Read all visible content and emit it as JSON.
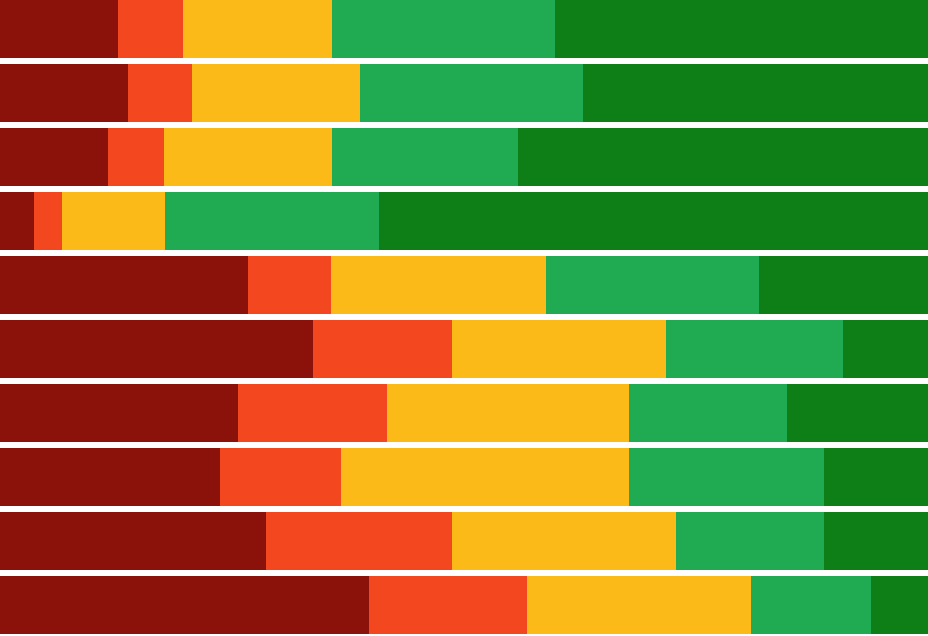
{
  "chart_data": {
    "type": "bar",
    "orientation": "horizontal",
    "stacked": true,
    "normalized": true,
    "grid": false,
    "legend": "none",
    "xlim": [
      0,
      100
    ],
    "title": "",
    "xlabel": "",
    "ylabel": "",
    "categories": [
      "",
      "",
      "",
      "",
      "",
      "",
      "",
      "",
      "",
      ""
    ],
    "series": [
      {
        "color": "#8b110b",
        "values": [
          12.7,
          13.8,
          11.6,
          3.7,
          26.7,
          33.7,
          25.7,
          23.7,
          28.7,
          39.8
        ]
      },
      {
        "color": "#f2471f",
        "values": [
          7.0,
          6.9,
          6.1,
          3.0,
          9.0,
          15.0,
          16.0,
          13.0,
          20.0,
          17.0
        ]
      },
      {
        "color": "#fcba19",
        "values": [
          16.1,
          18.1,
          18.1,
          11.1,
          23.1,
          23.1,
          26.1,
          31.1,
          24.1,
          24.1
        ]
      },
      {
        "color": "#20ab52",
        "values": [
          24.0,
          24.0,
          20.0,
          23.0,
          23.0,
          19.0,
          17.0,
          21.0,
          16.0,
          13.0
        ]
      },
      {
        "color": "#0e7e16",
        "values": [
          40.2,
          37.2,
          44.2,
          59.2,
          18.2,
          9.2,
          15.2,
          11.2,
          11.2,
          6.1
        ]
      }
    ]
  }
}
